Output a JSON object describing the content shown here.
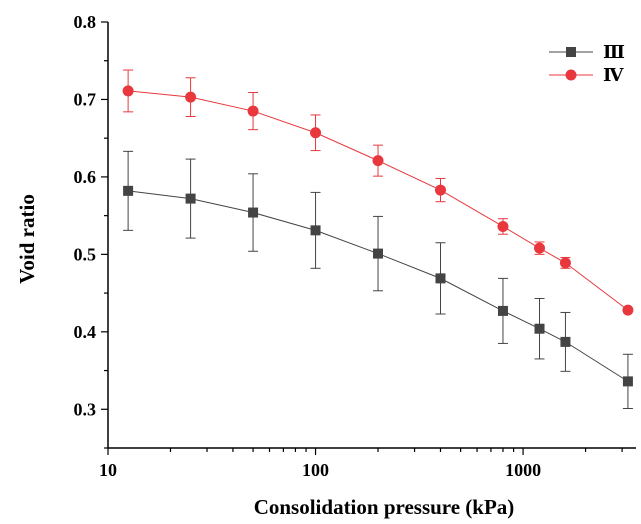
{
  "chart_data": {
    "type": "line",
    "xlabel": "Consolidation pressure (kPa)",
    "ylabel": "Void ratio",
    "xscale": "log",
    "xlim": [
      10,
      3500
    ],
    "ylim": [
      0.25,
      0.8
    ],
    "xticks": [
      10,
      100,
      1000
    ],
    "xtick_labels": [
      "10",
      "100",
      "1000"
    ],
    "yticks": [
      0.3,
      0.4,
      0.5,
      0.6,
      0.7,
      0.8
    ],
    "ytick_labels": [
      "0.3",
      "0.4",
      "0.5",
      "0.6",
      "0.7",
      "0.8"
    ],
    "grid": false,
    "legend_position": "top-right",
    "x": [
      12.5,
      25,
      50,
      100,
      200,
      400,
      800,
      1200,
      1600,
      3200
    ],
    "series": [
      {
        "name": "Ⅲ",
        "color": "#444444",
        "marker": "square",
        "values": [
          0.582,
          0.572,
          0.554,
          0.531,
          0.501,
          0.469,
          0.427,
          0.404,
          0.387,
          0.336
        ],
        "errors": [
          0.051,
          0.051,
          0.05,
          0.049,
          0.048,
          0.046,
          0.042,
          0.039,
          0.038,
          0.035
        ]
      },
      {
        "name": "Ⅳ",
        "color": "#e8383d",
        "marker": "circle",
        "values": [
          0.711,
          0.703,
          0.685,
          0.657,
          0.621,
          0.583,
          0.536,
          0.508,
          0.489,
          0.428
        ],
        "errors": [
          0.027,
          0.025,
          0.024,
          0.023,
          0.02,
          0.015,
          0.01,
          0.008,
          0.007,
          0.0
        ]
      }
    ]
  }
}
